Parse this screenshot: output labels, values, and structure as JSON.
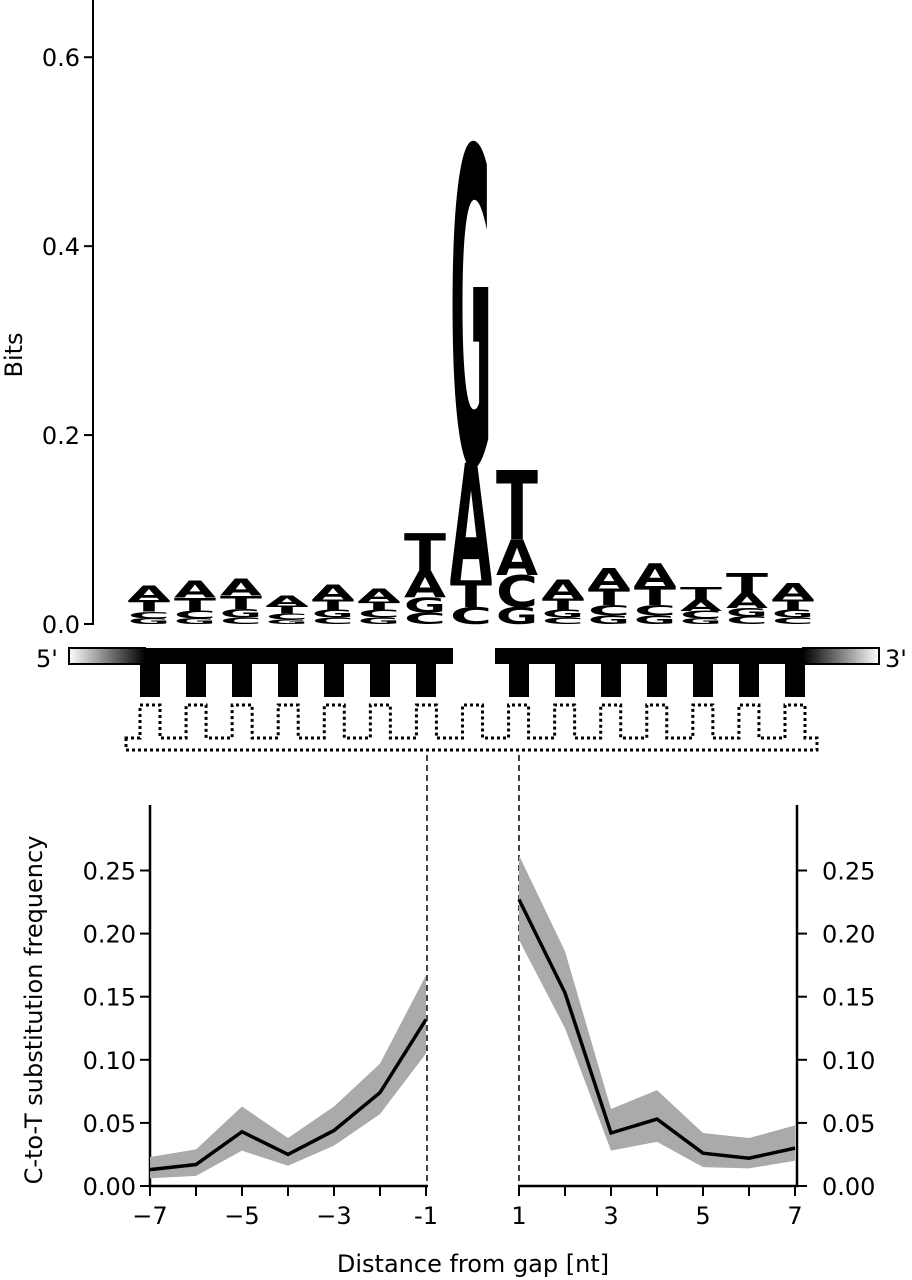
{
  "colors": {
    "A": "#22e622",
    "C": "#e61414",
    "G": "#f5a01a",
    "T": "#1414e6",
    "band": "#aaaaaa",
    "line": "#000000"
  },
  "chart_data": [
    {
      "type": "sequence-logo",
      "ylabel": "Bits",
      "ylim": [
        0,
        0.65
      ],
      "yticks": [
        "0.0",
        "0.2",
        "0.4",
        "0.6"
      ],
      "positions": [
        {
          "letters": [
            {
              "l": "G",
              "h": 0.006
            },
            {
              "l": "C",
              "h": 0.007
            },
            {
              "l": "T",
              "h": 0.012
            },
            {
              "l": "A",
              "h": 0.016
            }
          ]
        },
        {
          "letters": [
            {
              "l": "G",
              "h": 0.006
            },
            {
              "l": "C",
              "h": 0.008
            },
            {
              "l": "T",
              "h": 0.014
            },
            {
              "l": "A",
              "h": 0.018
            }
          ]
        },
        {
          "letters": [
            {
              "l": "C",
              "h": 0.007
            },
            {
              "l": "G",
              "h": 0.009
            },
            {
              "l": "T",
              "h": 0.014
            },
            {
              "l": "A",
              "h": 0.018
            }
          ]
        },
        {
          "letters": [
            {
              "l": "G",
              "h": 0.005
            },
            {
              "l": "C",
              "h": 0.006
            },
            {
              "l": "T",
              "h": 0.008
            },
            {
              "l": "A",
              "h": 0.011
            }
          ]
        },
        {
          "letters": [
            {
              "l": "C",
              "h": 0.007
            },
            {
              "l": "G",
              "h": 0.008
            },
            {
              "l": "T",
              "h": 0.011
            },
            {
              "l": "A",
              "h": 0.016
            }
          ]
        },
        {
          "letters": [
            {
              "l": "G",
              "h": 0.007
            },
            {
              "l": "C",
              "h": 0.008
            },
            {
              "l": "T",
              "h": 0.009
            },
            {
              "l": "A",
              "h": 0.014
            }
          ]
        },
        {
          "letters": [
            {
              "l": "C",
              "h": 0.012
            },
            {
              "l": "G",
              "h": 0.016
            },
            {
              "l": "A",
              "h": 0.028
            },
            {
              "l": "T",
              "h": 0.04
            }
          ]
        },
        {
          "letters": [
            {
              "l": "C",
              "h": 0.018
            },
            {
              "l": "T",
              "h": 0.028
            },
            {
              "l": "A",
              "h": 0.125
            },
            {
              "l": "G",
              "h": 0.335
            }
          ]
        },
        {
          "letters": [
            {
              "l": "G",
              "h": 0.018
            },
            {
              "l": "C",
              "h": 0.034
            },
            {
              "l": "A",
              "h": 0.038
            },
            {
              "l": "T",
              "h": 0.073
            }
          ]
        },
        {
          "letters": [
            {
              "l": "C",
              "h": 0.007
            },
            {
              "l": "G",
              "h": 0.008
            },
            {
              "l": "T",
              "h": 0.012
            },
            {
              "l": "A",
              "h": 0.02
            }
          ]
        },
        {
          "letters": [
            {
              "l": "G",
              "h": 0.009
            },
            {
              "l": "C",
              "h": 0.011
            },
            {
              "l": "T",
              "h": 0.017
            },
            {
              "l": "A",
              "h": 0.022
            }
          ]
        },
        {
          "letters": [
            {
              "l": "G",
              "h": 0.009
            },
            {
              "l": "C",
              "h": 0.011
            },
            {
              "l": "T",
              "h": 0.02
            },
            {
              "l": "A",
              "h": 0.024
            }
          ]
        },
        {
          "letters": [
            {
              "l": "G",
              "h": 0.006
            },
            {
              "l": "C",
              "h": 0.008
            },
            {
              "l": "A",
              "h": 0.012
            },
            {
              "l": "T",
              "h": 0.013
            }
          ]
        },
        {
          "letters": [
            {
              "l": "C",
              "h": 0.008
            },
            {
              "l": "G",
              "h": 0.009
            },
            {
              "l": "A",
              "h": 0.016
            },
            {
              "l": "T",
              "h": 0.021
            }
          ]
        },
        {
          "letters": [
            {
              "l": "C",
              "h": 0.007
            },
            {
              "l": "G",
              "h": 0.008
            },
            {
              "l": "T",
              "h": 0.011
            },
            {
              "l": "A",
              "h": 0.017
            }
          ]
        }
      ]
    },
    {
      "type": "line",
      "xlabel": "Distance from gap [nt]",
      "ylabel": "C-to-T substitution frequency",
      "ylim": [
        0,
        0.3
      ],
      "yticks": [
        "0.00",
        "0.05",
        "0.10",
        "0.15",
        "0.20",
        "0.25"
      ],
      "panels": [
        {
          "side": "left",
          "x": [
            -7,
            -6,
            -5,
            -4,
            -3,
            -2,
            -1
          ],
          "y": [
            0.013,
            0.017,
            0.043,
            0.025,
            0.044,
            0.074,
            0.132
          ],
          "lower": [
            0.006,
            0.008,
            0.028,
            0.016,
            0.032,
            0.057,
            0.105
          ],
          "upper": [
            0.023,
            0.029,
            0.063,
            0.038,
            0.063,
            0.097,
            0.167
          ],
          "xticks": [
            "−7",
            "−5",
            "−3",
            "-1"
          ]
        },
        {
          "side": "right",
          "x": [
            1,
            2,
            3,
            4,
            5,
            6,
            7
          ],
          "y": [
            0.227,
            0.153,
            0.042,
            0.053,
            0.026,
            0.022,
            0.03
          ],
          "lower": [
            0.195,
            0.125,
            0.028,
            0.035,
            0.015,
            0.014,
            0.02
          ],
          "upper": [
            0.262,
            0.186,
            0.061,
            0.076,
            0.042,
            0.038,
            0.048
          ],
          "xticks": [
            "1",
            "3",
            "5",
            "7"
          ]
        }
      ]
    }
  ],
  "diagram": {
    "five_prime": "5'",
    "three_prime": "3'"
  }
}
